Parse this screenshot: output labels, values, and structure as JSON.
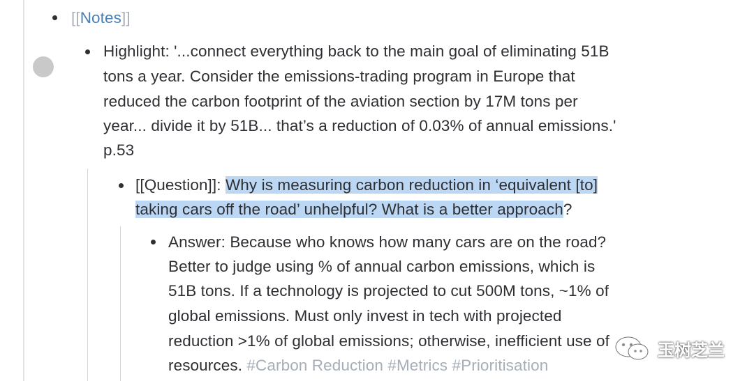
{
  "notes": {
    "open_bracket": "[[",
    "label": "Notes",
    "close_bracket": "]]"
  },
  "highlight_block": {
    "lines": [
      "Highlight: '...connect everything back to the main goal of eliminating 51B",
      "tons a year. Consider the emissions-trading program in Europe that",
      "reduced the carbon footprint of the aviation section by 17M tons per",
      "year... divide it by 51B... that’s a reduction of 0.03% of annual emissions.'",
      "p.53"
    ]
  },
  "question_block": {
    "prefix": "[[Question]]: ",
    "line1_highlighted": "Why is measuring carbon reduction in ‘equivalent [to]",
    "line2_highlighted": "taking cars off the road’ unhelpful? What is a better approach",
    "line2_rest": "?"
  },
  "answer_block": {
    "lines": [
      "Answer: Because who knows how many cars are on the road?",
      "Better to judge using % of annual carbon emissions, which is",
      "51B tons. If a technology is projected to cut 500M tons, ~1% of",
      "global emissions. Must only invest in tech with projected",
      "reduction >1% of global emissions; otherwise, inefficient use of"
    ],
    "last_line_text": "resources.",
    "tags": [
      "#Carbon Reduction",
      "#Metrics",
      "#Prioritisation"
    ]
  },
  "watermark": {
    "text": "玉树芝兰",
    "icon": "wechat-icon"
  }
}
